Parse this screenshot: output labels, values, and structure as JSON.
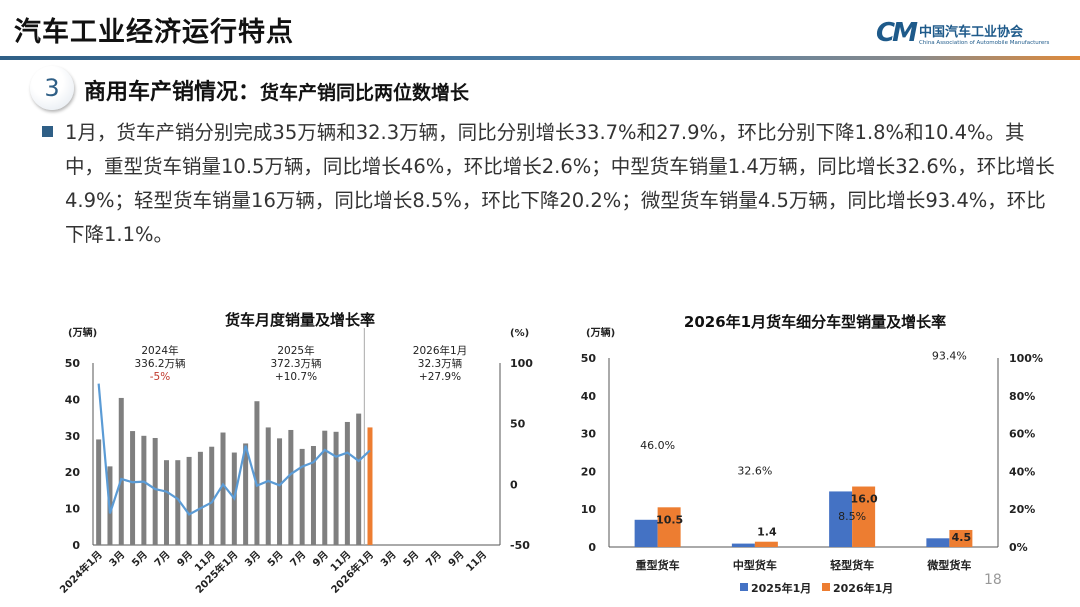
{
  "header": {
    "title": "汽车工业经济运行特点"
  },
  "logo": {
    "mark": "CM",
    "name_cn": "中国汽车工业协会",
    "name_en": "China Association of Automobile Manufacturers"
  },
  "section": {
    "number": "3",
    "title": "商用车产销情况：",
    "subtitle": "货车产销同比两位数增长"
  },
  "body": {
    "paragraph": "1月，货车产销分别完成35万辆和32.3万辆，同比分别增长33.7%和27.9%，环比分别下降1.8%和10.4%。其中，重型货车销量10.5万辆，同比增长46%，环比增长2.6%；中型货车销量1.4万辆，同比增长32.6%，环比增长4.9%；轻型货车销量16万辆，同比增长8.5%，环比下降20.2%；微型货车销量4.5万辆，同比增长93.4%，环比下降1.1%。"
  },
  "page_number": "18",
  "colors": {
    "accent": "#2f5f86",
    "bar_gray": "#7f7f7f",
    "bar_orange": "#ed7d31",
    "line_blue": "#5b9bd5",
    "series_blue": "#4472c4",
    "negative_red": "#c0392b"
  },
  "chart_data": [
    {
      "type": "bar+line",
      "title": "货车月度销量及增长率",
      "ylabel": "(万辆)",
      "y2label": "(%)",
      "ylim": [
        0,
        50
      ],
      "yticks": [
        "0",
        "10",
        "20",
        "30",
        "40",
        "50"
      ],
      "y2lim": [
        -50,
        100
      ],
      "y2ticks": [
        "-50",
        "0",
        "50",
        "100"
      ],
      "xtick_labels": [
        "2024年1月",
        "3月",
        "5月",
        "7月",
        "9月",
        "11月",
        "2025年1月",
        "3月",
        "5月",
        "7月",
        "9月",
        "11月",
        "2026年1月",
        "3月",
        "5月",
        "7月",
        "9月",
        "11月"
      ],
      "months": [
        "2024-01",
        "2024-02",
        "2024-03",
        "2024-04",
        "2024-05",
        "2024-06",
        "2024-07",
        "2024-08",
        "2024-09",
        "2024-10",
        "2024-11",
        "2024-12",
        "2025-01",
        "2025-02",
        "2025-03",
        "2025-04",
        "2025-05",
        "2025-06",
        "2025-07",
        "2025-08",
        "2025-09",
        "2025-10",
        "2025-11",
        "2025-12",
        "2026-01",
        "2026-02",
        "2026-03",
        "2026-04",
        "2026-05",
        "2026-06",
        "2026-07",
        "2026-08",
        "2026-09",
        "2026-10",
        "2026-11",
        "2026-12"
      ],
      "sales": [
        29.0,
        21.6,
        40.4,
        31.3,
        30.0,
        29.4,
        23.3,
        23.3,
        24.2,
        25.6,
        27.0,
        30.9,
        25.4,
        27.9,
        39.5,
        32.3,
        29.3,
        31.6,
        26.4,
        27.2,
        31.4,
        31.1,
        33.8,
        36.1,
        32.3
      ],
      "growth": [
        83,
        -24,
        4.4,
        1.7,
        2.2,
        -3.9,
        -6,
        -12,
        -24.8,
        -19.8,
        -14.9,
        0,
        -11.6,
        31.9,
        -1.1,
        2.8,
        -0.8,
        8.5,
        14.6,
        18.2,
        28.4,
        22.8,
        26.1,
        19.3,
        27.9
      ],
      "annotations": [
        {
          "year": "2024年",
          "total": "336.2万辆",
          "change": "-5%"
        },
        {
          "year": "2025年",
          "total": "372.3万辆",
          "change": "+10.7%"
        },
        {
          "year": "2026年1月",
          "total": "32.3万辆",
          "change": "+27.9%"
        }
      ]
    },
    {
      "type": "bar",
      "title": "2026年1月货车细分车型销量及增长率",
      "ylabel": "(万辆)",
      "ylim": [
        0,
        50
      ],
      "yticks": [
        "0",
        "10",
        "20",
        "30",
        "40",
        "50"
      ],
      "y2lim": [
        0,
        100
      ],
      "y2ticks": [
        "0%",
        "20%",
        "40%",
        "60%",
        "80%",
        "100%"
      ],
      "categories": [
        "重型货车",
        "中型货车",
        "轻型货车",
        "微型货车"
      ],
      "series": [
        {
          "name": "2025年1月",
          "values": [
            7.2,
            0.9,
            14.7,
            2.3
          ]
        },
        {
          "name": "2026年1月",
          "values": [
            10.5,
            1.4,
            16.0,
            4.5
          ],
          "labels": [
            "10.5",
            "1.4",
            "16.0",
            "4.5"
          ]
        }
      ],
      "growth": [
        46.0,
        32.6,
        8.5,
        93.4
      ],
      "growth_labels": [
        "46.0%",
        "32.6%",
        "8.5%",
        "93.4%"
      ],
      "legend": "bottom"
    }
  ]
}
